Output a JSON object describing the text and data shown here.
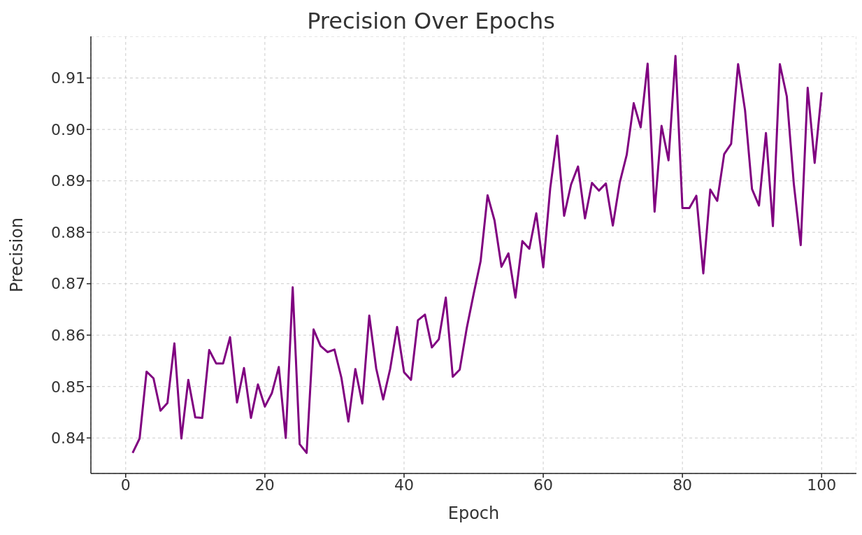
{
  "chart_data": {
    "type": "line",
    "title": "Precision Over Epochs",
    "xlabel": "Epoch",
    "ylabel": "Precision",
    "x": [
      1,
      2,
      3,
      4,
      5,
      6,
      7,
      8,
      9,
      10,
      11,
      12,
      13,
      14,
      15,
      16,
      17,
      18,
      19,
      20,
      21,
      22,
      23,
      24,
      25,
      26,
      27,
      28,
      29,
      30,
      31,
      32,
      33,
      34,
      35,
      36,
      37,
      38,
      39,
      40,
      41,
      42,
      43,
      44,
      45,
      46,
      47,
      48,
      49,
      50,
      51,
      52,
      53,
      54,
      55,
      56,
      57,
      58,
      59,
      60,
      61,
      62,
      63,
      64,
      65,
      66,
      67,
      68,
      69,
      70,
      71,
      72,
      73,
      74,
      75,
      76,
      77,
      78,
      79,
      80,
      81,
      82,
      83,
      84,
      85,
      86,
      87,
      88,
      89,
      90,
      91,
      92,
      93,
      94,
      95,
      96,
      97,
      98,
      99,
      100
    ],
    "series": [
      {
        "color": "#800080",
        "values": [
          0.8371,
          0.8399,
          0.8529,
          0.8516,
          0.8453,
          0.8468,
          0.8584,
          0.8399,
          0.8513,
          0.844,
          0.8439,
          0.8571,
          0.8545,
          0.8545,
          0.8596,
          0.8469,
          0.8536,
          0.8439,
          0.8504,
          0.8461,
          0.8487,
          0.8538,
          0.84,
          0.8693,
          0.8388,
          0.8371,
          0.8611,
          0.8579,
          0.8567,
          0.8572,
          0.8517,
          0.8432,
          0.8534,
          0.8467,
          0.8638,
          0.8535,
          0.8475,
          0.8534,
          0.8616,
          0.8528,
          0.8513,
          0.8629,
          0.864,
          0.8576,
          0.8592,
          0.8673,
          0.8519,
          0.8533,
          0.8613,
          0.868,
          0.8744,
          0.8872,
          0.8823,
          0.8733,
          0.8759,
          0.8673,
          0.8783,
          0.8768,
          0.8837,
          0.8732,
          0.8885,
          0.8988,
          0.8832,
          0.8893,
          0.8928,
          0.8827,
          0.8896,
          0.8881,
          0.8895,
          0.8813,
          0.8897,
          0.8951,
          0.9051,
          0.9004,
          0.9128,
          0.884,
          0.9007,
          0.894,
          0.9143,
          0.8847,
          0.8847,
          0.8871,
          0.872,
          0.8883,
          0.8861,
          0.8952,
          0.8972,
          0.9127,
          0.9037,
          0.8884,
          0.8852,
          0.8993,
          0.8812,
          0.9127,
          0.9064,
          0.8895,
          0.8775,
          0.9081,
          0.8935,
          0.9072
        ]
      }
    ],
    "xlim": [
      -5,
      105
    ],
    "xticks": [
      0,
      20,
      40,
      60,
      80,
      100
    ],
    "ylim": [
      0.8331,
      0.9181
    ],
    "yticks": [
      {
        "value": 0.84,
        "label": "0.84"
      },
      {
        "value": 0.85,
        "label": "0.85"
      },
      {
        "value": 0.86,
        "label": "0.86"
      },
      {
        "value": 0.87,
        "label": "0.87"
      },
      {
        "value": 0.88,
        "label": "0.88"
      },
      {
        "value": 0.89,
        "label": "0.89"
      },
      {
        "value": 0.9,
        "label": "0.90"
      },
      {
        "value": 0.91,
        "label": "0.91"
      }
    ],
    "grid": true,
    "line_style": "solid",
    "marker": "none"
  }
}
